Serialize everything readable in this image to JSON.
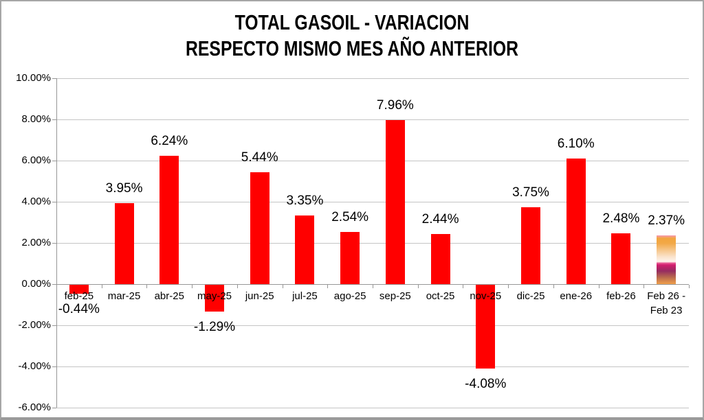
{
  "title": {
    "line1": "TOTAL GASOIL - VARIACION",
    "line2": "RESPECTO MISMO MES AÑO ANTERIOR"
  },
  "chart_data": {
    "type": "bar",
    "title": "TOTAL GASOIL - VARIACION RESPECTO MISMO MES AÑO ANTERIOR",
    "categories": [
      "feb-25",
      "mar-25",
      "abr-25",
      "may-25",
      "jun-25",
      "jul-25",
      "ago-25",
      "sep-25",
      "oct-25",
      "nov-25",
      "dic-25",
      "ene-26",
      "feb-26",
      "Feb 26 - Feb 23"
    ],
    "values": [
      -0.44,
      3.95,
      6.24,
      -1.29,
      5.44,
      3.35,
      2.54,
      7.96,
      2.44,
      -4.08,
      3.75,
      6.1,
      2.48,
      2.37
    ],
    "value_labels": [
      "-0.44%",
      "3.95%",
      "6.24%",
      "-1.29%",
      "5.44%",
      "3.35%",
      "2.54%",
      "7.96%",
      "2.44%",
      "-4.08%",
      "3.75%",
      "6.10%",
      "2.48%",
      "2.37%"
    ],
    "xlabel": "",
    "ylabel": "",
    "ylim": [
      -6,
      10
    ],
    "ytick_step": 2,
    "ytick_labels": [
      "10.00%",
      "8.00%",
      "6.00%",
      "4.00%",
      "2.00%",
      "0.00%",
      "-2.00%",
      "-4.00%",
      "-6.00%"
    ],
    "grid": true,
    "legend": "none",
    "bar_color": "#ff0000",
    "last_bar_gradient": [
      {
        "pos": 0,
        "color": "#f79bb5"
      },
      {
        "pos": 6,
        "color": "#f2a53e"
      },
      {
        "pos": 16,
        "color": "#f2a846"
      },
      {
        "pos": 44,
        "color": "#fae3cc"
      },
      {
        "pos": 54,
        "color": "#fdf4ec"
      },
      {
        "pos": 57,
        "color": "#e75290"
      },
      {
        "pos": 61,
        "color": "#d01d6d"
      },
      {
        "pos": 73,
        "color": "#962c60"
      },
      {
        "pos": 86,
        "color": "#b96a4e"
      },
      {
        "pos": 100,
        "color": "#f0a04b"
      }
    ]
  },
  "colors": {
    "background": "#ffffff",
    "frame_border": "#a6a6a6",
    "gridline": "#c4c4c4",
    "axis": "#969696",
    "text": "#000000"
  }
}
